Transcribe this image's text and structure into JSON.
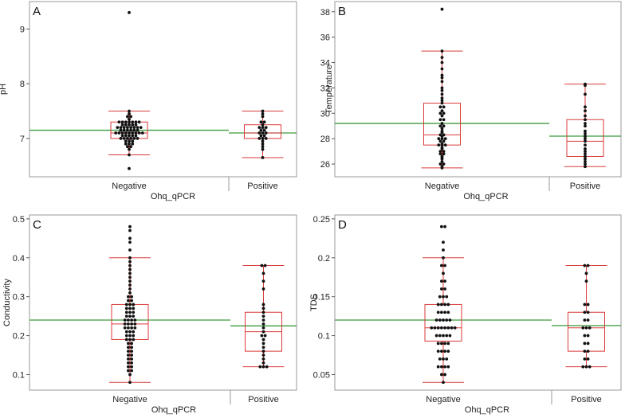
{
  "colors": {
    "frame": "#9a9a9a",
    "box": "#d93a3a",
    "mean_line": "#3d9a3d",
    "point": "#111111"
  },
  "chart_data": [
    {
      "type": "box",
      "panel": "A",
      "ylabel": "pH",
      "xlabel": "Ohq_qPCR",
      "categories": [
        "Negative",
        "Positive"
      ],
      "ylim": [
        6.3,
        9.5
      ],
      "yticks": [
        7,
        8,
        9
      ],
      "group_means": [
        7.15,
        7.1
      ],
      "boxes": [
        {
          "q1": 7.0,
          "median": 7.1,
          "q3": 7.3,
          "whisker_low": 6.7,
          "whisker_high": 7.5
        },
        {
          "q1": 7.0,
          "median": 7.1,
          "q3": 7.25,
          "whisker_low": 6.65,
          "whisker_high": 7.5
        }
      ],
      "points": [
        [
          9.3,
          7.5,
          7.45,
          7.4,
          7.4,
          7.35,
          7.3,
          7.3,
          7.3,
          7.3,
          7.3,
          7.3,
          7.3,
          7.25,
          7.25,
          7.25,
          7.25,
          7.25,
          7.2,
          7.2,
          7.2,
          7.2,
          7.2,
          7.2,
          7.2,
          7.2,
          7.15,
          7.15,
          7.15,
          7.15,
          7.15,
          7.15,
          7.1,
          7.1,
          7.1,
          7.1,
          7.1,
          7.1,
          7.1,
          7.1,
          7.1,
          7.05,
          7.05,
          7.05,
          7.05,
          7.05,
          7.0,
          7.0,
          7.0,
          7.0,
          7.0,
          7.0,
          6.95,
          6.95,
          6.95,
          6.9,
          6.9,
          6.9,
          6.85,
          6.85,
          6.8,
          6.7,
          6.45
        ],
        [
          7.5,
          7.45,
          7.4,
          7.3,
          7.3,
          7.25,
          7.2,
          7.2,
          7.2,
          7.15,
          7.15,
          7.1,
          7.1,
          7.1,
          7.05,
          7.05,
          7.0,
          7.0,
          7.0,
          6.95,
          6.9,
          6.85,
          6.8,
          6.65
        ]
      ]
    },
    {
      "type": "box",
      "panel": "B",
      "ylabel": "Temperature",
      "xlabel": "Ohq_qPCR",
      "categories": [
        "Negative",
        "Positive"
      ],
      "ylim": [
        25.0,
        38.8
      ],
      "yticks": [
        26,
        28,
        30,
        32,
        34,
        36,
        38
      ],
      "group_means": [
        29.2,
        28.2
      ],
      "boxes": [
        {
          "q1": 27.5,
          "median": 28.3,
          "q3": 30.8,
          "whisker_low": 25.7,
          "whisker_high": 34.9
        },
        {
          "q1": 26.6,
          "median": 27.8,
          "q3": 29.5,
          "whisker_low": 25.8,
          "whisker_high": 32.3
        }
      ],
      "points": [
        [
          38.2,
          34.9,
          34.4,
          34.0,
          33.5,
          33.0,
          32.8,
          32.5,
          32.0,
          31.8,
          31.5,
          31.2,
          31.0,
          30.8,
          30.5,
          30.5,
          30.2,
          30.0,
          30.0,
          29.8,
          29.5,
          29.5,
          29.2,
          29.0,
          29.0,
          28.8,
          28.6,
          28.5,
          28.3,
          28.3,
          28.2,
          28.0,
          28.0,
          28.0,
          27.8,
          27.8,
          27.6,
          27.5,
          27.5,
          27.5,
          27.3,
          27.2,
          27.0,
          27.0,
          26.8,
          26.8,
          26.6,
          26.5,
          26.4,
          26.2,
          26.0,
          26.0,
          25.8,
          25.7
        ],
        [
          32.3,
          32.2,
          31.5,
          30.5,
          30.2,
          29.8,
          29.5,
          29.2,
          29.0,
          28.6,
          28.4,
          28.2,
          28.0,
          27.8,
          27.5,
          27.2,
          27.0,
          26.8,
          26.6,
          26.4,
          26.2,
          26.0,
          25.8
        ]
      ]
    },
    {
      "type": "box",
      "panel": "C",
      "ylabel": "Conductivity",
      "xlabel": "Ohq_qPCR",
      "categories": [
        "Negative",
        "Positive"
      ],
      "ylim": [
        0.06,
        0.51
      ],
      "yticks": [
        0.1,
        0.2,
        0.3,
        0.4,
        0.5
      ],
      "group_means": [
        0.24,
        0.225
      ],
      "boxes": [
        {
          "q1": 0.19,
          "median": 0.23,
          "q3": 0.28,
          "whisker_low": 0.08,
          "whisker_high": 0.4
        },
        {
          "q1": 0.16,
          "median": 0.21,
          "q3": 0.26,
          "whisker_low": 0.12,
          "whisker_high": 0.38
        }
      ],
      "points": [
        [
          0.48,
          0.47,
          0.45,
          0.44,
          0.42,
          0.4,
          0.39,
          0.38,
          0.37,
          0.36,
          0.35,
          0.34,
          0.33,
          0.32,
          0.31,
          0.3,
          0.3,
          0.29,
          0.29,
          0.28,
          0.28,
          0.28,
          0.27,
          0.27,
          0.27,
          0.26,
          0.26,
          0.26,
          0.25,
          0.25,
          0.25,
          0.24,
          0.24,
          0.24,
          0.24,
          0.23,
          0.23,
          0.23,
          0.23,
          0.22,
          0.22,
          0.22,
          0.22,
          0.21,
          0.21,
          0.21,
          0.2,
          0.2,
          0.2,
          0.19,
          0.19,
          0.19,
          0.18,
          0.18,
          0.17,
          0.17,
          0.16,
          0.16,
          0.15,
          0.15,
          0.14,
          0.14,
          0.13,
          0.13,
          0.12,
          0.12,
          0.11,
          0.11,
          0.1,
          0.08
        ],
        [
          0.38,
          0.38,
          0.36,
          0.34,
          0.32,
          0.28,
          0.27,
          0.26,
          0.25,
          0.24,
          0.23,
          0.22,
          0.21,
          0.2,
          0.2,
          0.19,
          0.18,
          0.17,
          0.16,
          0.15,
          0.14,
          0.13,
          0.12,
          0.12,
          0.12
        ]
      ]
    },
    {
      "type": "box",
      "panel": "D",
      "ylabel": "TDS",
      "xlabel": "Ohq_qPCR",
      "categories": [
        "Negative",
        "Positive"
      ],
      "ylim": [
        0.03,
        0.255
      ],
      "yticks": [
        0.05,
        0.1,
        0.15,
        0.2,
        0.25
      ],
      "group_means": [
        0.12,
        0.113
      ],
      "boxes": [
        {
          "q1": 0.093,
          "median": 0.11,
          "q3": 0.14,
          "whisker_low": 0.04,
          "whisker_high": 0.2
        },
        {
          "q1": 0.08,
          "median": 0.11,
          "q3": 0.13,
          "whisker_low": 0.06,
          "whisker_high": 0.19
        }
      ],
      "points": [
        [
          0.24,
          0.24,
          0.22,
          0.21,
          0.2,
          0.19,
          0.19,
          0.18,
          0.17,
          0.17,
          0.16,
          0.16,
          0.15,
          0.15,
          0.15,
          0.14,
          0.14,
          0.14,
          0.14,
          0.13,
          0.13,
          0.13,
          0.13,
          0.12,
          0.12,
          0.12,
          0.12,
          0.12,
          0.11,
          0.11,
          0.11,
          0.11,
          0.11,
          0.11,
          0.11,
          0.11,
          0.1,
          0.1,
          0.1,
          0.1,
          0.1,
          0.09,
          0.09,
          0.09,
          0.09,
          0.08,
          0.08,
          0.08,
          0.08,
          0.07,
          0.07,
          0.07,
          0.06,
          0.06,
          0.06,
          0.06,
          0.05,
          0.05,
          0.04
        ],
        [
          0.19,
          0.19,
          0.18,
          0.17,
          0.14,
          0.14,
          0.13,
          0.13,
          0.12,
          0.12,
          0.11,
          0.11,
          0.11,
          0.1,
          0.1,
          0.09,
          0.09,
          0.08,
          0.08,
          0.07,
          0.07,
          0.06,
          0.06,
          0.06
        ]
      ]
    }
  ]
}
